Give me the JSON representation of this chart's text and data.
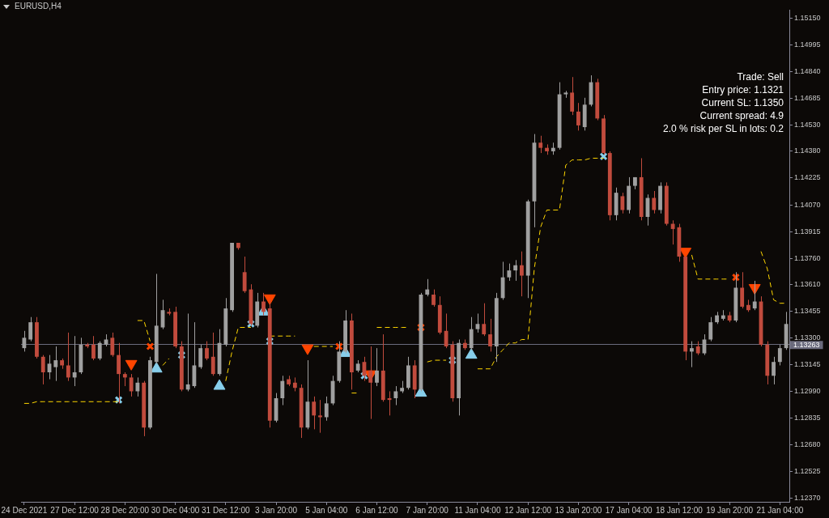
{
  "chart_data": {
    "type": "candlestick",
    "title": "EURUSD,H4",
    "categories": [
      "24 Dec 2021",
      null,
      null,
      null,
      null,
      null,
      null,
      null,
      "27 Dec 12:00",
      null,
      null,
      null,
      null,
      null,
      null,
      null,
      "28 Dec 20:00",
      null,
      null,
      null,
      null,
      null,
      null,
      null,
      "30 Dec 04:00",
      null,
      null,
      null,
      null,
      null,
      null,
      null,
      "31 Dec 12:00",
      null,
      null,
      null,
      null,
      null,
      null,
      null,
      "3 Jan 20:00",
      null,
      null,
      null,
      null,
      null,
      null,
      null,
      "5 Jan 04:00",
      null,
      null,
      null,
      null,
      null,
      null,
      null,
      "6 Jan 12:00",
      null,
      null,
      null,
      null,
      null,
      null,
      null,
      "7 Jan 20:00",
      null,
      null,
      null,
      null,
      null,
      null,
      null,
      "11 Jan 04:00",
      null,
      null,
      null,
      null,
      null,
      null,
      null,
      "12 Jan 12:00",
      null,
      null,
      null,
      null,
      null,
      null,
      null,
      "13 Jan 20:00",
      null,
      null,
      null,
      null,
      null,
      null,
      null,
      "17 Jan 04:00",
      null,
      null,
      null,
      null,
      null,
      null,
      null,
      "18 Jan 12:00",
      null,
      null,
      null,
      null,
      null,
      null,
      null,
      "19 Jan 20:00",
      null,
      null,
      null,
      null,
      null,
      null,
      null,
      "21 Jan 04:00",
      null
    ],
    "ohlc": [
      [
        1.1324,
        1.1334,
        1.1322,
        1.133
      ],
      [
        1.1329,
        1.1342,
        1.1328,
        1.1339
      ],
      [
        1.1339,
        1.1342,
        1.1318,
        1.1319
      ],
      [
        1.1319,
        1.132,
        1.1303,
        1.131
      ],
      [
        1.131,
        1.132,
        1.1306,
        1.1315
      ],
      [
        1.1313,
        1.1325,
        1.1305,
        1.1317
      ],
      [
        1.1317,
        1.1318,
        1.1312,
        1.1314
      ],
      [
        1.1314,
        1.1333,
        1.1305,
        1.1307
      ],
      [
        1.1307,
        1.1331,
        1.1302,
        1.131
      ],
      [
        1.131,
        1.133,
        1.1309,
        1.1326
      ],
      [
        1.1326,
        1.1327,
        1.1324,
        1.1325
      ],
      [
        1.1326,
        1.1331,
        1.1317,
        1.1318
      ],
      [
        1.1318,
        1.1328,
        1.1317,
        1.1327
      ],
      [
        1.1326,
        1.1332,
        1.1325,
        1.1329
      ],
      [
        1.133,
        1.1333,
        1.1319,
        1.132
      ],
      [
        1.132,
        1.1327,
        1.1292,
        1.1309
      ],
      [
        1.1309,
        1.131,
        1.1302,
        1.1307
      ],
      [
        1.1307,
        1.1309,
        1.1296,
        1.1299
      ],
      [
        1.1299,
        1.1307,
        1.1296,
        1.1304
      ],
      [
        1.1304,
        1.1305,
        1.1273,
        1.1278
      ],
      [
        1.1278,
        1.1319,
        1.1277,
        1.1317
      ],
      [
        1.1316,
        1.1367,
        1.1315,
        1.1337
      ],
      [
        1.1336,
        1.1352,
        1.1335,
        1.1346
      ],
      [
        1.1345,
        1.1347,
        1.1343,
        1.1344
      ],
      [
        1.1345,
        1.1348,
        1.1324,
        1.1325
      ],
      [
        1.1325,
        1.1328,
        1.1299,
        1.13
      ],
      [
        1.13,
        1.1344,
        1.1299,
        1.1303
      ],
      [
        1.1302,
        1.1339,
        1.1301,
        1.1314
      ],
      [
        1.1313,
        1.1326,
        1.1312,
        1.1324
      ],
      [
        1.1324,
        1.1328,
        1.1317,
        1.1318
      ],
      [
        1.1319,
        1.1333,
        1.1308,
        1.1309
      ],
      [
        1.1309,
        1.1335,
        1.1308,
        1.1327
      ],
      [
        1.1326,
        1.1353,
        1.1325,
        1.1347
      ],
      [
        1.1346,
        1.1385,
        1.1345,
        1.1385
      ],
      [
        1.1385,
        1.1385,
        1.1381,
        1.1382
      ],
      [
        1.1368,
        1.1377,
        1.1356,
        1.1357
      ],
      [
        1.1358,
        1.1361,
        1.1337,
        1.1338
      ],
      [
        1.1337,
        1.1356,
        1.1336,
        1.1351
      ],
      [
        1.1351,
        1.1356,
        1.1343,
        1.1345
      ],
      [
        1.1347,
        1.1352,
        1.1278,
        1.1282
      ],
      [
        1.1282,
        1.1298,
        1.1281,
        1.1295
      ],
      [
        1.1295,
        1.1308,
        1.1291,
        1.1305
      ],
      [
        1.1306,
        1.1308,
        1.1302,
        1.1303
      ],
      [
        1.1304,
        1.1307,
        1.1299,
        1.1301
      ],
      [
        1.1301,
        1.1303,
        1.1272,
        1.1278
      ],
      [
        1.1278,
        1.1317,
        1.1277,
        1.1293
      ],
      [
        1.1293,
        1.1296,
        1.1277,
        1.1285
      ],
      [
        1.1285,
        1.1294,
        1.1275,
        1.1284
      ],
      [
        1.1284,
        1.1296,
        1.1282,
        1.1292
      ],
      [
        1.1292,
        1.1308,
        1.1291,
        1.1305
      ],
      [
        1.1305,
        1.1328,
        1.1304,
        1.1322
      ],
      [
        1.1322,
        1.1346,
        1.1321,
        1.134
      ],
      [
        1.134,
        1.1344,
        1.13,
        1.131
      ],
      [
        1.1311,
        1.1317,
        1.131,
        1.1315
      ],
      [
        1.1316,
        1.1319,
        1.1305,
        1.1308
      ],
      [
        1.1311,
        1.1325,
        1.1283,
        1.1304
      ],
      [
        1.1304,
        1.1324,
        1.1302,
        1.1311
      ],
      [
        1.1311,
        1.1332,
        1.1293,
        1.1294
      ],
      [
        1.1295,
        1.1299,
        1.1285,
        1.1294
      ],
      [
        1.1295,
        1.1302,
        1.1291,
        1.1299
      ],
      [
        1.1299,
        1.1305,
        1.1298,
        1.1301
      ],
      [
        1.1301,
        1.1319,
        1.13,
        1.1314
      ],
      [
        1.1314,
        1.1317,
        1.1295,
        1.13
      ],
      [
        1.13,
        1.1356,
        1.1299,
        1.1355
      ],
      [
        1.1355,
        1.1364,
        1.1354,
        1.1358
      ],
      [
        1.1355,
        1.1358,
        1.1348,
        1.1349
      ],
      [
        1.1349,
        1.1354,
        1.1332,
        1.1333
      ],
      [
        1.1334,
        1.1344,
        1.1324,
        1.1325
      ],
      [
        1.1326,
        1.1328,
        1.1293,
        1.1295
      ],
      [
        1.1295,
        1.1329,
        1.1285,
        1.1327
      ],
      [
        1.1327,
        1.1329,
        1.1323,
        1.1324
      ],
      [
        1.1324,
        1.1342,
        1.1323,
        1.1335
      ],
      [
        1.1335,
        1.1344,
        1.1333,
        1.1338
      ],
      [
        1.1338,
        1.135,
        1.1331,
        1.1332
      ],
      [
        1.1332,
        1.1341,
        1.1322,
        1.1325
      ],
      [
        1.1325,
        1.1356,
        1.1316,
        1.1353
      ],
      [
        1.1353,
        1.1374,
        1.1352,
        1.1365
      ],
      [
        1.1365,
        1.1373,
        1.1363,
        1.1369
      ],
      [
        1.1369,
        1.1375,
        1.1363,
        1.1372
      ],
      [
        1.1372,
        1.138,
        1.1354,
        1.1366
      ],
      [
        1.1366,
        1.141,
        1.1353,
        1.1409
      ],
      [
        1.1409,
        1.1448,
        1.1394,
        1.1443
      ],
      [
        1.1443,
        1.1447,
        1.1437,
        1.144
      ],
      [
        1.144,
        1.1442,
        1.1436,
        1.1438
      ],
      [
        1.1438,
        1.1443,
        1.1436,
        1.144
      ],
      [
        1.144,
        1.1478,
        1.1439,
        1.1471
      ],
      [
        1.1471,
        1.1473,
        1.1469,
        1.1472
      ],
      [
        1.1472,
        1.1481,
        1.1459,
        1.1461
      ],
      [
        1.1461,
        1.1466,
        1.145,
        1.1453
      ],
      [
        1.1452,
        1.1469,
        1.145,
        1.1465
      ],
      [
        1.1465,
        1.1482,
        1.1464,
        1.1478
      ],
      [
        1.1478,
        1.148,
        1.1456,
        1.1457
      ],
      [
        1.1457,
        1.1459,
        1.1436,
        1.1437
      ],
      [
        1.1437,
        1.1438,
        1.1398,
        1.1401
      ],
      [
        1.1401,
        1.1417,
        1.1398,
        1.1414
      ],
      [
        1.1412,
        1.1414,
        1.1402,
        1.1404
      ],
      [
        1.1404,
        1.1423,
        1.1402,
        1.1418
      ],
      [
        1.1418,
        1.1423,
        1.1416,
        1.1423
      ],
      [
        1.1423,
        1.1434,
        1.1398,
        1.14
      ],
      [
        1.14,
        1.1413,
        1.1395,
        1.1411
      ],
      [
        1.1411,
        1.1415,
        1.1402,
        1.1404
      ],
      [
        1.1404,
        1.142,
        1.1402,
        1.1418
      ],
      [
        1.1418,
        1.142,
        1.1395,
        1.1396
      ],
      [
        1.1396,
        1.1398,
        1.1384,
        1.1393
      ],
      [
        1.1394,
        1.1396,
        1.1374,
        1.1377
      ],
      [
        1.1377,
        1.1377,
        1.1317,
        1.1322
      ],
      [
        1.1322,
        1.1328,
        1.1313,
        1.1324
      ],
      [
        1.1325,
        1.1328,
        1.132,
        1.1321
      ],
      [
        1.1321,
        1.1332,
        1.132,
        1.1329
      ],
      [
        1.1329,
        1.1342,
        1.1328,
        1.1339
      ],
      [
        1.1339,
        1.1345,
        1.1338,
        1.1343
      ],
      [
        1.1341,
        1.1346,
        1.134,
        1.1343
      ],
      [
        1.1343,
        1.1345,
        1.1339,
        1.134
      ],
      [
        1.134,
        1.1368,
        1.1339,
        1.1359
      ],
      [
        1.1359,
        1.1368,
        1.1347,
        1.1348
      ],
      [
        1.1349,
        1.1352,
        1.1345,
        1.1346
      ],
      [
        1.1347,
        1.1363,
        1.1346,
        1.1351
      ],
      [
        1.1351,
        1.1354,
        1.1325,
        1.1326
      ],
      [
        1.1326,
        1.1328,
        1.1303,
        1.1308
      ],
      [
        1.1308,
        1.1319,
        1.1303,
        1.1316
      ],
      [
        1.1316,
        1.1326,
        1.1314,
        1.1324
      ],
      [
        1.1324,
        1.1345,
        1.1323,
        1.1338
      ]
    ],
    "colors": [
      "#a0a0a0",
      "#a0a0a0",
      "#c14b3d",
      "#c14b3d",
      "#a0a0a0",
      "#a0a0a0",
      "#c14b3d",
      "#c14b3d",
      "#a0a0a0",
      "#a0a0a0",
      "#c14b3d",
      "#c14b3d",
      "#a0a0a0",
      "#a0a0a0",
      "#c14b3d",
      "#c14b3d",
      "#c14b3d",
      "#c14b3d",
      "#a0a0a0",
      "#c14b3d",
      "#a0a0a0",
      "#a0a0a0",
      "#a0a0a0",
      "#c14b3d",
      "#c14b3d",
      "#c14b3d",
      "#a0a0a0",
      "#a0a0a0",
      "#a0a0a0",
      "#c14b3d",
      "#c14b3d",
      "#a0a0a0",
      "#a0a0a0",
      "#a0a0a0",
      "#c14b3d",
      "#c14b3d",
      "#c14b3d",
      "#a0a0a0",
      "#c14b3d",
      "#c14b3d",
      "#a0a0a0",
      "#a0a0a0",
      "#c14b3d",
      "#c14b3d",
      "#c14b3d",
      "#a0a0a0",
      "#c14b3d",
      "#c14b3d",
      "#a0a0a0",
      "#a0a0a0",
      "#a0a0a0",
      "#a0a0a0",
      "#c14b3d",
      "#a0a0a0",
      "#c14b3d",
      "#c14b3d",
      "#a0a0a0",
      "#c14b3d",
      "#c14b3d",
      "#a0a0a0",
      "#a0a0a0",
      "#a0a0a0",
      "#c14b3d",
      "#a0a0a0",
      "#a0a0a0",
      "#c14b3d",
      "#c14b3d",
      "#c14b3d",
      "#c14b3d",
      "#a0a0a0",
      "#c14b3d",
      "#a0a0a0",
      "#a0a0a0",
      "#c14b3d",
      "#c14b3d",
      "#a0a0a0",
      "#a0a0a0",
      "#a0a0a0",
      "#a0a0a0",
      "#c14b3d",
      "#a0a0a0",
      "#a0a0a0",
      "#c14b3d",
      "#c14b3d",
      "#a0a0a0",
      "#a0a0a0",
      "#a0a0a0",
      "#c14b3d",
      "#c14b3d",
      "#a0a0a0",
      "#a0a0a0",
      "#c14b3d",
      "#c14b3d",
      "#c14b3d",
      "#a0a0a0",
      "#c14b3d",
      "#a0a0a0",
      "#a0a0a0",
      "#c14b3d",
      "#a0a0a0",
      "#c14b3d",
      "#a0a0a0",
      "#c14b3d",
      "#c14b3d",
      "#c14b3d",
      "#c14b3d",
      "#a0a0a0",
      "#c14b3d",
      "#a0a0a0",
      "#a0a0a0",
      "#a0a0a0",
      "#a0a0a0",
      "#c14b3d",
      "#a0a0a0",
      "#c14b3d",
      "#c14b3d",
      "#a0a0a0",
      "#c14b3d",
      "#c14b3d",
      "#a0a0a0",
      "#a0a0a0",
      "#a0a0a0"
    ],
    "series": [
      {
        "type": "line",
        "color": "#ffd700",
        "line_style": "dashed",
        "values": [
          1.1292,
          1.1292,
          1.1293,
          1.1293,
          1.1293,
          1.1293,
          1.1293,
          1.1293,
          1.1293,
          1.1293,
          1.1293,
          1.1293,
          1.1293,
          1.1293,
          1.1293,
          1.1293,
          null,
          null,
          1.134,
          1.134,
          1.1328,
          null,
          1.1314,
          1.1318,
          null,
          null,
          null,
          null,
          null,
          null,
          null,
          null,
          1.1305,
          1.1322,
          1.1336,
          1.1336,
          1.1336,
          null,
          null,
          1.1331,
          1.1331,
          1.1331,
          1.1331,
          1.1331,
          null,
          null,
          1.1325,
          1.1325,
          1.1325,
          1.1325,
          null,
          null,
          1.1298,
          1.1298,
          null,
          null,
          1.1336,
          1.1336,
          1.1336,
          1.1336,
          1.1336,
          1.1336,
          null,
          null,
          1.1316,
          1.1317,
          1.1317,
          1.1317,
          null,
          null,
          null,
          null,
          1.1312,
          1.1312,
          1.1312,
          1.1319,
          1.1323,
          1.1327,
          1.1327,
          1.1329,
          1.1329,
          1.137,
          1.1394,
          1.1404,
          1.1404,
          1.1404,
          1.143,
          1.1433,
          1.1433,
          1.1433,
          1.1434,
          1.1434,
          1.1434,
          null,
          null,
          null,
          null,
          null,
          null,
          null,
          null,
          null,
          null,
          null,
          null,
          null,
          1.1378,
          1.1364,
          1.1364,
          1.1364,
          1.1364,
          1.1364,
          1.1364,
          null,
          null,
          null,
          null,
          1.138,
          1.137,
          1.1352,
          1.135,
          1.135
        ]
      },
      {
        "type": "scatter",
        "color": "#87ceeb",
        "marker": "triangle",
        "values": [
          null,
          null,
          null,
          null,
          null,
          null,
          null,
          null,
          null,
          null,
          null,
          null,
          null,
          null,
          null,
          null,
          null,
          null,
          null,
          null,
          null,
          1.1312,
          null,
          null,
          null,
          null,
          null,
          null,
          null,
          null,
          null,
          1.1302,
          null,
          null,
          null,
          null,
          null,
          null,
          1.1345,
          null,
          null,
          null,
          null,
          null,
          null,
          null,
          null,
          null,
          null,
          null,
          null,
          1.1321,
          null,
          null,
          null,
          null,
          null,
          null,
          null,
          null,
          null,
          null,
          null,
          1.1298,
          null,
          null,
          null,
          null,
          null,
          null,
          null,
          1.132,
          null,
          null,
          null,
          null,
          null,
          null,
          null,
          null,
          null,
          null,
          null,
          null,
          null,
          null,
          null,
          null,
          null,
          null,
          null,
          null,
          null,
          null,
          null,
          null,
          null,
          null,
          null,
          null,
          null,
          null,
          null,
          null,
          null,
          null,
          null,
          null,
          null,
          null,
          null,
          null,
          null,
          null,
          null,
          null,
          null,
          null,
          null,
          null,
          null,
          null
        ]
      },
      {
        "type": "scatter",
        "color": "#ff4500",
        "marker": "triangle-down",
        "values": [
          null,
          null,
          null,
          null,
          null,
          null,
          null,
          null,
          null,
          null,
          null,
          null,
          null,
          null,
          null,
          null,
          null,
          1.1315,
          null,
          null,
          null,
          null,
          null,
          null,
          null,
          null,
          null,
          null,
          null,
          null,
          null,
          null,
          null,
          null,
          null,
          null,
          null,
          null,
          null,
          1.1353,
          null,
          null,
          null,
          null,
          null,
          1.1324,
          null,
          null,
          null,
          null,
          null,
          null,
          null,
          null,
          null,
          1.1309,
          null,
          null,
          null,
          null,
          null,
          null,
          null,
          null,
          null,
          null,
          null,
          null,
          null,
          null,
          null,
          null,
          null,
          null,
          null,
          null,
          null,
          null,
          null,
          null,
          null,
          null,
          null,
          null,
          null,
          null,
          null,
          null,
          null,
          null,
          null,
          null,
          null,
          null,
          null,
          null,
          null,
          null,
          null,
          null,
          null,
          null,
          null,
          null,
          null,
          1.138,
          null,
          null,
          null,
          null,
          null,
          null,
          null,
          null,
          null,
          null,
          1.1359,
          null,
          null,
          null,
          null,
          null
        ]
      },
      {
        "type": "scatter",
        "color": "#87ceeb",
        "marker": "cross",
        "values": [
          null,
          null,
          null,
          null,
          null,
          null,
          null,
          null,
          null,
          null,
          null,
          null,
          null,
          null,
          null,
          1.1294,
          null,
          null,
          null,
          null,
          null,
          null,
          null,
          null,
          null,
          1.132,
          null,
          null,
          null,
          null,
          null,
          null,
          null,
          null,
          null,
          null,
          1.1338,
          null,
          null,
          1.1328,
          null,
          null,
          null,
          null,
          null,
          null,
          null,
          null,
          null,
          null,
          null,
          null,
          null,
          null,
          1.1308,
          null,
          null,
          null,
          null,
          null,
          null,
          null,
          null,
          null,
          null,
          null,
          null,
          null,
          1.1317,
          null,
          null,
          null,
          null,
          null,
          null,
          null,
          null,
          null,
          null,
          null,
          null,
          null,
          null,
          null,
          null,
          null,
          null,
          null,
          null,
          null,
          null,
          null,
          1.1435,
          null,
          null,
          null,
          null,
          null,
          null,
          null,
          null,
          null,
          null,
          null,
          null,
          null,
          null,
          null,
          null,
          null,
          null,
          null,
          null,
          null,
          null,
          null,
          null,
          null,
          null,
          null,
          null,
          null
        ]
      },
      {
        "type": "scatter",
        "color": "#ff4500",
        "marker": "cross",
        "values": [
          null,
          null,
          null,
          null,
          null,
          null,
          null,
          null,
          null,
          null,
          null,
          null,
          null,
          null,
          null,
          null,
          null,
          null,
          null,
          null,
          1.1325,
          null,
          null,
          null,
          null,
          null,
          null,
          null,
          null,
          null,
          null,
          null,
          null,
          null,
          null,
          null,
          null,
          null,
          null,
          null,
          null,
          null,
          null,
          null,
          null,
          null,
          null,
          null,
          null,
          null,
          1.1325,
          null,
          null,
          null,
          null,
          null,
          null,
          null,
          null,
          null,
          null,
          null,
          null,
          1.1336,
          null,
          null,
          null,
          null,
          null,
          null,
          null,
          null,
          null,
          null,
          null,
          null,
          null,
          null,
          null,
          null,
          null,
          null,
          null,
          null,
          null,
          null,
          null,
          null,
          null,
          null,
          null,
          null,
          null,
          null,
          null,
          null,
          null,
          null,
          null,
          null,
          null,
          null,
          null,
          null,
          null,
          null,
          null,
          null,
          null,
          null,
          null,
          null,
          null,
          1.1365,
          null,
          null,
          null,
          null,
          null,
          null,
          null,
          null
        ]
      }
    ],
    "ylim": [
      1.1235,
      1.152
    ],
    "yticks": [
      {
        "value": 1.1237,
        "label": "1.12370"
      },
      {
        "value": 1.12525,
        "label": "1.12525"
      },
      {
        "value": 1.1268,
        "label": "1.12680"
      },
      {
        "value": 1.12835,
        "label": "1.12835"
      },
      {
        "value": 1.1299,
        "label": "1.12990"
      },
      {
        "value": 1.13145,
        "label": "1.13145"
      },
      {
        "value": 1.133,
        "label": "1.13300"
      },
      {
        "value": 1.13455,
        "label": "1.13455"
      },
      {
        "value": 1.1361,
        "label": "1.13610"
      },
      {
        "value": 1.1376,
        "label": "1.13760"
      },
      {
        "value": 1.13915,
        "label": "1.13915"
      },
      {
        "value": 1.1407,
        "label": "1.14070"
      },
      {
        "value": 1.14225,
        "label": "1.14225"
      },
      {
        "value": 1.1438,
        "label": "1.14380"
      },
      {
        "value": 1.1453,
        "label": "1.14530"
      },
      {
        "value": 1.14685,
        "label": "1.14685"
      },
      {
        "value": 1.1484,
        "label": "1.14840"
      },
      {
        "value": 1.14995,
        "label": "1.14995"
      },
      {
        "value": 1.1515,
        "label": "1.15150"
      }
    ],
    "ref_lines": [
      {
        "axis": "y",
        "value": 1.13263,
        "label": "1.13263",
        "color": "#6b6b7d"
      }
    ],
    "annotations": [
      "Trade: Sell",
      "Entry price: 1.1321",
      "Current SL: 1.1350",
      "Current spread: 4.9",
      "2.0 % risk per SL in lots: 0.2"
    ],
    "grid": false,
    "legend": false
  }
}
